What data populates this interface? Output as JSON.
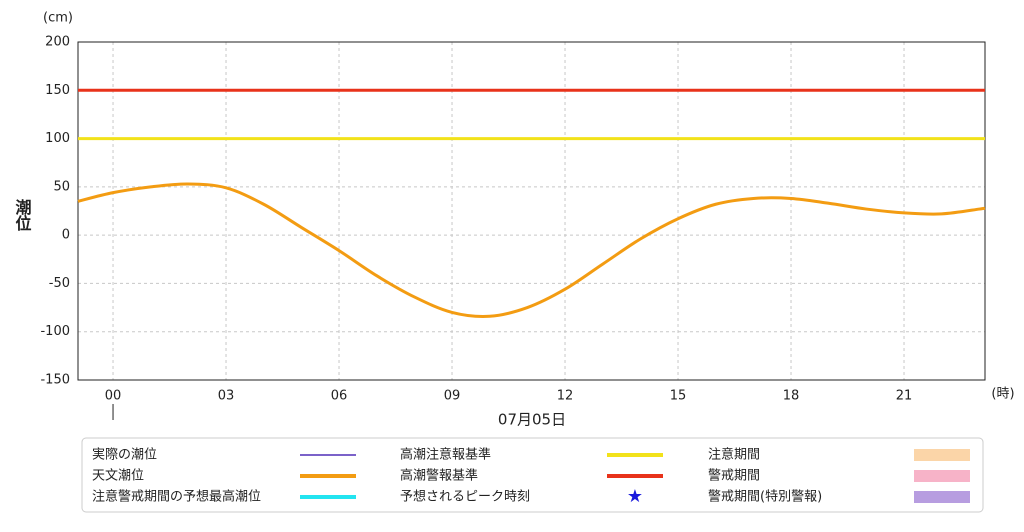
{
  "chart_data": {
    "type": "line",
    "y_unit": "(cm)",
    "x_unit": "(時)",
    "y_label": "潮位",
    "date_label": "07月05日",
    "xlim": [
      -0.93,
      23.15
    ],
    "ylim": [
      -150,
      200
    ],
    "xticks": [
      {
        "value": 0,
        "label": "00"
      },
      {
        "value": 3,
        "label": "03"
      },
      {
        "value": 6,
        "label": "06"
      },
      {
        "value": 9,
        "label": "09"
      },
      12,
      15,
      18,
      21
    ],
    "yticks": [
      200,
      150,
      100,
      50,
      0,
      -50,
      -100,
      -150
    ],
    "grid": true,
    "series": [
      {
        "color": "#f39c12",
        "x": [
          -0.93,
          0,
          1,
          2,
          3,
          4,
          5,
          6,
          7,
          8,
          9,
          10,
          11,
          12,
          13,
          14,
          15,
          16,
          17,
          18,
          19,
          20,
          21,
          22,
          23,
          23.15
        ],
        "values": [
          35,
          44,
          50,
          53,
          49,
          32,
          8,
          -16,
          -42,
          -64,
          -80,
          -84,
          -75,
          -56,
          -30,
          -4,
          17,
          32,
          38,
          38,
          33,
          27,
          23,
          22,
          27,
          28
        ]
      }
    ],
    "thresholds": [
      {
        "value": 100,
        "color": "#f2e21a"
      },
      {
        "value": 150,
        "color": "#e8321a"
      }
    ],
    "legend": [
      {
        "name": "実際の潮位",
        "color": "#7b62c9",
        "mark": "line"
      },
      {
        "name": "天文潮位",
        "color": "#f39c12",
        "mark": "line"
      },
      {
        "name": "注意警戒期間の予想最高潮位",
        "color": "#22e4f0",
        "mark": "line"
      },
      {
        "name": "高潮注意報基準",
        "color": "#f2e21a",
        "mark": "line"
      },
      {
        "name": "高潮警報基準",
        "color": "#e8321a",
        "mark": "line"
      },
      {
        "name": "予想されるピーク時刻",
        "color": "#1a1adc",
        "mark": "star"
      },
      {
        "name": "注意期間",
        "color": "#fbd5a8",
        "mark": "band"
      },
      {
        "name": "警戒期間",
        "color": "#f7b3c8",
        "mark": "band"
      },
      {
        "name": "警戒期間(特別警報)",
        "color": "#b79de0",
        "mark": "band"
      }
    ]
  }
}
